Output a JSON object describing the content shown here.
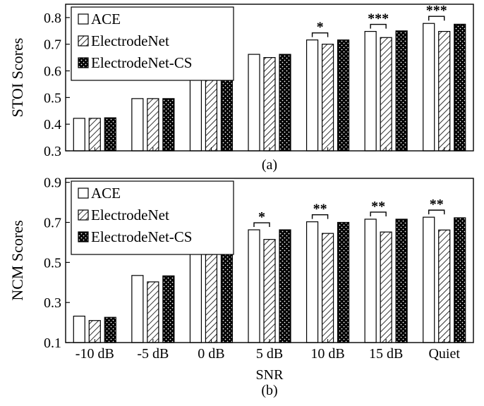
{
  "chart_data": [
    {
      "type": "bar",
      "subtitle": "(a)",
      "ylabel": "STOI Scores",
      "xlabel": "",
      "ylim": [
        0.3,
        0.85
      ],
      "yticks": [
        "0.3",
        "0.4",
        "0.5",
        "0.6",
        "0.7",
        "0.8"
      ],
      "categories": [
        "-10 dB",
        "-5 dB",
        "0 dB",
        "5 dB",
        "10 dB",
        "15 dB",
        "Quiet"
      ],
      "series": [
        {
          "name": "ACE",
          "values": [
            0.422,
            0.496,
            0.585,
            0.662,
            0.716,
            0.748,
            0.778
          ]
        },
        {
          "name": "ElectrodeNet",
          "values": [
            0.422,
            0.496,
            0.58,
            0.65,
            0.7,
            0.725,
            0.748
          ]
        },
        {
          "name": "ElectrodeNet-CS",
          "values": [
            0.424,
            0.496,
            0.587,
            0.662,
            0.716,
            0.75,
            0.775
          ]
        }
      ],
      "significance": [
        {
          "category": "10 dB",
          "label": "*"
        },
        {
          "category": "15 dB",
          "label": "***"
        },
        {
          "category": "Quiet",
          "label": "***"
        }
      ],
      "legend_position": "top-left"
    },
    {
      "type": "bar",
      "subtitle": "(b)",
      "ylabel": "NCM Scores",
      "xlabel": "SNR",
      "ylim": [
        0.1,
        0.92
      ],
      "yticks": [
        "0.1",
        "0.3",
        "0.5",
        "0.7",
        "0.9"
      ],
      "categories": [
        "-10 dB",
        "-5 dB",
        "0 dB",
        "5 dB",
        "10 dB",
        "15 dB",
        "Quiet"
      ],
      "series": [
        {
          "name": "ACE",
          "values": [
            0.232,
            0.435,
            0.583,
            0.663,
            0.703,
            0.716,
            0.726
          ]
        },
        {
          "name": "ElectrodeNet",
          "values": [
            0.21,
            0.403,
            0.54,
            0.615,
            0.645,
            0.652,
            0.662
          ]
        },
        {
          "name": "ElectrodeNet-CS",
          "values": [
            0.226,
            0.433,
            0.583,
            0.663,
            0.7,
            0.716,
            0.723
          ]
        }
      ],
      "significance": [
        {
          "category": "5 dB",
          "label": "*"
        },
        {
          "category": "10 dB",
          "label": "**"
        },
        {
          "category": "15 dB",
          "label": "**"
        },
        {
          "category": "Quiet",
          "label": "**"
        }
      ],
      "legend_position": "top-left"
    }
  ],
  "colors": {
    "bar_edge": "#000000",
    "ace_fill": "#ffffff",
    "net_hatch": "diagonal",
    "cs_fill": "dotted-black"
  }
}
